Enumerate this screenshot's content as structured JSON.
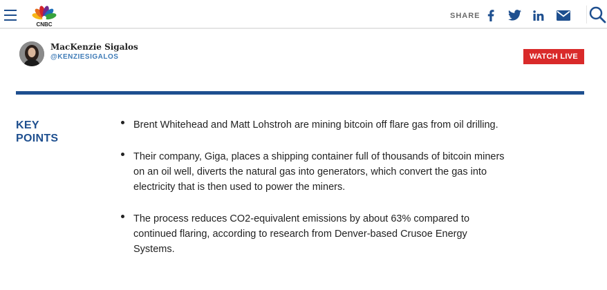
{
  "header": {
    "logo_text": "CNBC",
    "share_label": "SHARE",
    "icons": [
      "menu-icon",
      "facebook-icon",
      "twitter-icon",
      "linkedin-icon",
      "email-icon",
      "search-icon"
    ]
  },
  "author": {
    "name": "MacKenzie Sigalos",
    "handle": "@KENZIESIGALOS"
  },
  "watch_live_label": "WATCH LIVE",
  "key_points": {
    "title_line1": "KEY",
    "title_line2": "POINTS",
    "items": [
      "Brent Whitehead and Matt Lohstroh are mining bitcoin off flare gas from oil drilling.",
      "Their company, Giga, places a shipping container full of thousands of bitcoin miners on an oil well, diverts the natural gas into generators, which convert the gas into electricity that is then used to power the miners.",
      "The process reduces CO2-equivalent emissions by about 63% compared to continued flaring, according to research from Denver-based Crusoe Energy Systems."
    ]
  },
  "colors": {
    "brand_blue": "#1e4f8f",
    "live_red": "#d92a2a",
    "handle_blue": "#3f7bb7"
  }
}
